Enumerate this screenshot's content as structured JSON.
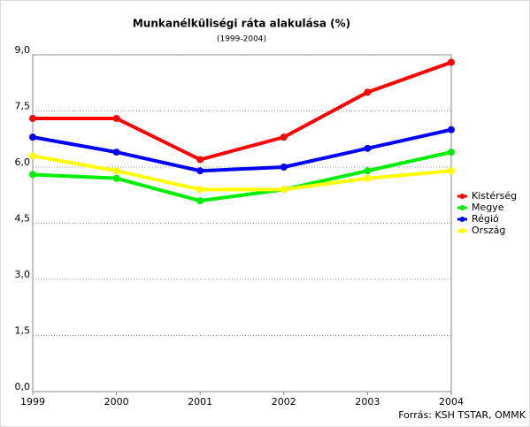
{
  "chart_data": {
    "type": "line",
    "title": "Munkanélküliségi ráta alakulása (%)",
    "subtitle": "(1999-2004)",
    "source": "Forrás: KSH TSTAR, OMMK",
    "categories": [
      "1999",
      "2000",
      "2001",
      "2002",
      "2003",
      "2004"
    ],
    "series": [
      {
        "name": "Kistérség",
        "color": "#ff0000",
        "values": [
          7.3,
          7.3,
          6.2,
          6.8,
          8.0,
          8.8
        ]
      },
      {
        "name": "Megye",
        "color": "#00ee00",
        "values": [
          5.8,
          5.7,
          5.1,
          5.4,
          5.9,
          6.4
        ]
      },
      {
        "name": "Régió",
        "color": "#0000ff",
        "values": [
          6.8,
          6.4,
          5.9,
          6.0,
          6.5,
          7.0
        ]
      },
      {
        "name": "Ország",
        "color": "#ffff00",
        "values": [
          6.3,
          5.9,
          5.4,
          5.4,
          5.7,
          5.9
        ]
      }
    ],
    "ylim": [
      0,
      9
    ],
    "yticks": [
      {
        "value": 0,
        "label": "0,0"
      },
      {
        "value": 1.5,
        "label": "1,5"
      },
      {
        "value": 3,
        "label": "3,0"
      },
      {
        "value": 4.5,
        "label": "4,5"
      },
      {
        "value": 6,
        "label": "6,0"
      },
      {
        "value": 7.5,
        "label": "7,5"
      },
      {
        "value": 9,
        "label": "9,0"
      }
    ],
    "grid": true,
    "legend": "right"
  }
}
